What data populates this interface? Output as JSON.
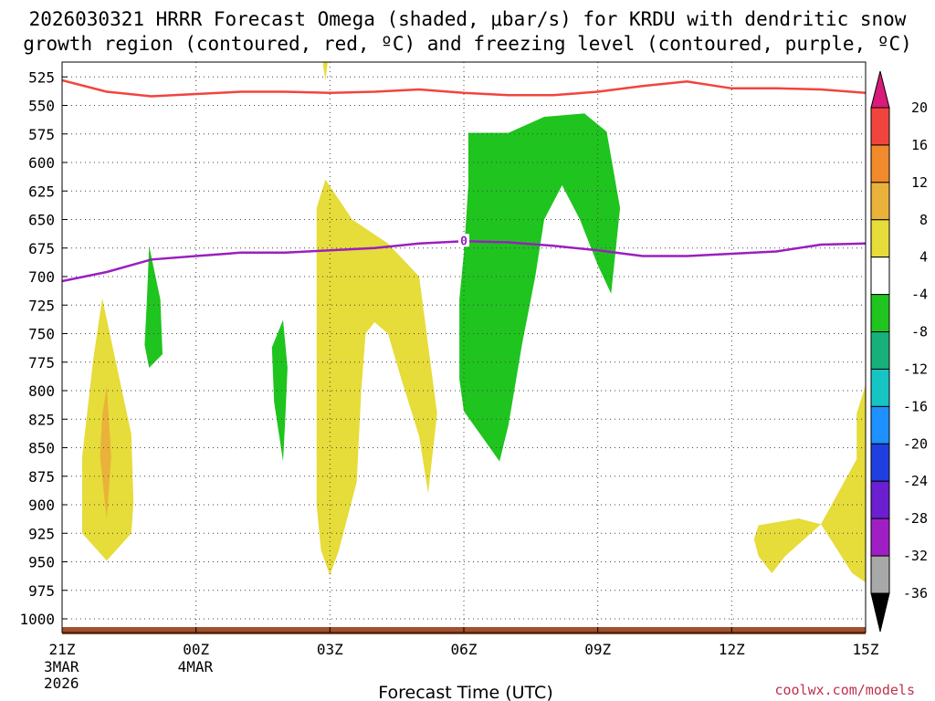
{
  "chart_data": {
    "type": "contour",
    "title_line1": "2026030321 HRRR Forecast Omega (shaded, μbar/s) for KRDU with dendritic snow",
    "title_line2": "growth region (contoured, red, ºC) and freezing level (contoured, purple, ºC)",
    "xlabel": "Forecast Time (UTC)",
    "ylabel": "",
    "credit": "coolwx.com/models",
    "x_range_hours": [
      0,
      18
    ],
    "y_range_hpa": [
      512,
      1012
    ],
    "x_ticks": [
      {
        "hour": 0,
        "label": "21Z",
        "sub1": "3MAR",
        "sub2": "2026"
      },
      {
        "hour": 3,
        "label": "00Z",
        "sub1": "4MAR",
        "sub2": ""
      },
      {
        "hour": 6,
        "label": "03Z",
        "sub1": "",
        "sub2": ""
      },
      {
        "hour": 9,
        "label": "06Z",
        "sub1": "",
        "sub2": ""
      },
      {
        "hour": 12,
        "label": "09Z",
        "sub1": "",
        "sub2": ""
      },
      {
        "hour": 15,
        "label": "12Z",
        "sub1": "",
        "sub2": ""
      },
      {
        "hour": 18,
        "label": "15Z",
        "sub1": "",
        "sub2": ""
      }
    ],
    "y_ticks": [
      525,
      550,
      575,
      600,
      625,
      650,
      675,
      700,
      725,
      750,
      775,
      800,
      825,
      850,
      875,
      900,
      925,
      950,
      975,
      1000
    ],
    "colorbar": {
      "labels": [
        "20",
        "16",
        "12",
        "8",
        "4",
        "-4",
        "-8",
        "-12",
        "-16",
        "-20",
        "-24",
        "-28",
        "-32",
        "-36"
      ],
      "colors": [
        "#d81b7a",
        "#f2443e",
        "#f08a2a",
        "#e9b23a",
        "#e6dc3a",
        "#ffffff",
        "#1fc41f",
        "#18b07a",
        "#17c4c4",
        "#1e90ff",
        "#1f3fe0",
        "#6a1fd0",
        "#a01fc4",
        "#a8a8a8",
        "#000000"
      ]
    },
    "series": [
      {
        "name": "dendritic snow growth region (-12 ºC)",
        "kind": "line",
        "color": "#f2443e",
        "x": [
          0,
          1,
          2,
          3,
          4,
          5,
          6,
          7,
          8,
          9,
          10,
          11,
          12,
          13,
          14,
          15,
          16,
          17,
          18
        ],
        "y": [
          528,
          538,
          542,
          540,
          538,
          538,
          539,
          538,
          536,
          539,
          541,
          541,
          538,
          533,
          529,
          535,
          535,
          536,
          539
        ]
      },
      {
        "name": "freezing level (0 ºC)",
        "kind": "line",
        "color": "#9a1fbf",
        "label": "0",
        "x": [
          0,
          1,
          2,
          3,
          4,
          5,
          6,
          7,
          8,
          9,
          10,
          11,
          12,
          13,
          14,
          15,
          16,
          17,
          18
        ],
        "y": [
          704,
          696,
          685,
          682,
          679,
          679,
          677,
          675,
          671,
          669,
          670,
          673,
          677,
          682,
          682,
          680,
          678,
          672,
          671
        ]
      }
    ],
    "shaded_regions": [
      {
        "name": "omega 4-8",
        "color": "#e6dc3a",
        "points": [
          [
            0.9,
            719
          ],
          [
            1.55,
            838
          ],
          [
            1.6,
            898
          ],
          [
            1.55,
            925
          ],
          [
            1.0,
            949
          ],
          [
            0.45,
            925
          ],
          [
            0.45,
            858
          ],
          [
            0.7,
            772
          ]
        ]
      },
      {
        "name": "omega 8-12",
        "color": "#e9b23a",
        "points": [
          [
            1.0,
            796
          ],
          [
            1.1,
            858
          ],
          [
            1.0,
            913
          ],
          [
            0.85,
            858
          ],
          [
            0.9,
            822
          ]
        ]
      },
      {
        "name": "omega 4-8",
        "color": "#e6dc3a",
        "points": [
          [
            5.85,
            512
          ],
          [
            5.95,
            512
          ],
          [
            5.9,
            528
          ],
          [
            5.85,
            516
          ]
        ]
      },
      {
        "name": "omega 4-8",
        "color": "#e6dc3a",
        "points": [
          [
            5.9,
            615
          ],
          [
            6.5,
            650
          ],
          [
            7.3,
            671
          ],
          [
            8.0,
            700
          ],
          [
            8.2,
            760
          ],
          [
            8.4,
            820
          ],
          [
            8.2,
            890
          ],
          [
            8.0,
            840
          ],
          [
            7.6,
            790
          ],
          [
            7.3,
            750
          ],
          [
            7.0,
            740
          ],
          [
            6.8,
            750
          ],
          [
            6.7,
            800
          ],
          [
            6.6,
            880
          ],
          [
            6.2,
            940
          ],
          [
            6.0,
            962
          ],
          [
            5.8,
            940
          ],
          [
            5.7,
            900
          ],
          [
            5.7,
            800
          ],
          [
            5.7,
            700
          ],
          [
            5.7,
            640
          ]
        ]
      },
      {
        "name": "omega 4-8",
        "color": "#e6dc3a",
        "points": [
          [
            15.6,
            918
          ],
          [
            16.5,
            912
          ],
          [
            17.0,
            917
          ],
          [
            16.2,
            945
          ],
          [
            15.9,
            960
          ],
          [
            15.6,
            945
          ],
          [
            15.5,
            930
          ]
        ]
      },
      {
        "name": "omega 4-8",
        "color": "#e6dc3a",
        "points": [
          [
            18.0,
            795
          ],
          [
            18.0,
            968
          ],
          [
            17.7,
            960
          ],
          [
            17.0,
            917
          ],
          [
            17.8,
            860
          ],
          [
            17.8,
            820
          ]
        ]
      },
      {
        "name": "omega -4 to -8",
        "color": "#1fc41f",
        "points": [
          [
            1.95,
            673
          ],
          [
            2.2,
            720
          ],
          [
            2.25,
            768
          ],
          [
            1.95,
            780
          ],
          [
            1.85,
            760
          ],
          [
            1.9,
            720
          ]
        ]
      },
      {
        "name": "omega -4 to -8",
        "color": "#1fc41f",
        "points": [
          [
            4.95,
            738
          ],
          [
            5.05,
            780
          ],
          [
            5.0,
            825
          ],
          [
            4.95,
            862
          ],
          [
            4.75,
            810
          ],
          [
            4.7,
            762
          ]
        ]
      },
      {
        "name": "omega -4 to -8",
        "color": "#1fc41f",
        "points": [
          [
            9.1,
            574
          ],
          [
            10.0,
            574
          ],
          [
            10.8,
            560
          ],
          [
            11.7,
            557
          ],
          [
            12.2,
            573
          ],
          [
            12.5,
            640
          ],
          [
            12.3,
            715
          ],
          [
            12.0,
            690
          ],
          [
            11.6,
            650
          ],
          [
            11.2,
            620
          ],
          [
            10.8,
            650
          ],
          [
            10.6,
            700
          ],
          [
            10.3,
            760
          ],
          [
            10.0,
            830
          ],
          [
            9.8,
            862
          ],
          [
            9.4,
            840
          ],
          [
            9.0,
            818
          ],
          [
            8.9,
            790
          ],
          [
            8.9,
            720
          ],
          [
            9.0,
            680
          ],
          [
            9.1,
            620
          ]
        ]
      }
    ]
  }
}
